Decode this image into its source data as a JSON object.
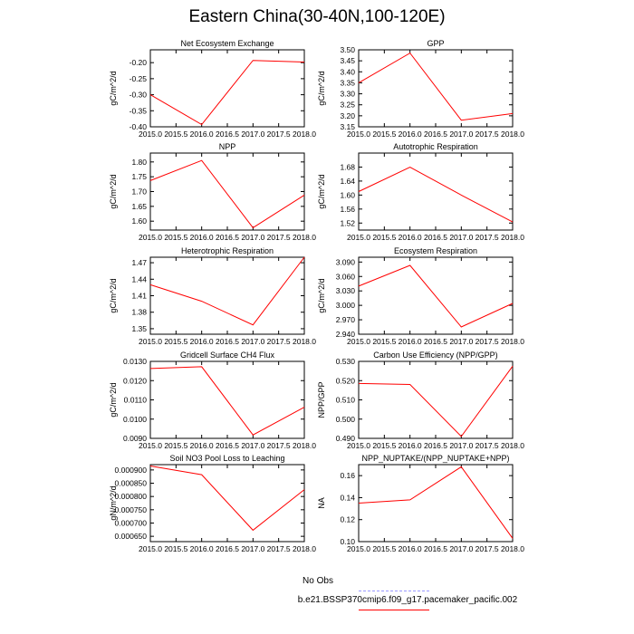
{
  "title": "Eastern China(30-40N,100-120E)",
  "colors": {
    "series": "#ff0000",
    "obs": "#9999ff",
    "axis": "#000000"
  },
  "chart_data": [
    {
      "type": "line",
      "title": "Net Ecosystem Exchange",
      "ylabel": "gC/m^2/d",
      "x": [
        2015.0,
        2016.0,
        2017.0,
        2018.0
      ],
      "values": [
        -0.3,
        -0.393,
        -0.193,
        -0.198
      ],
      "xlim": [
        2015,
        2018
      ],
      "ylim": [
        -0.4,
        -0.16
      ],
      "yticks": [
        -0.4,
        -0.35,
        -0.3,
        -0.25,
        -0.2
      ],
      "ytick_labels": [
        "-0.40",
        "-0.35",
        "-0.30",
        "-0.25",
        "-0.20"
      ],
      "xtick_labels": [
        "2015.0",
        "2015.5",
        "2016.0",
        "2016.5",
        "2017.0",
        "2017.5",
        "2018.0"
      ]
    },
    {
      "type": "line",
      "title": "GPP",
      "ylabel": "gC/m^2/d",
      "x": [
        2015.0,
        2016.0,
        2017.0,
        2018.0
      ],
      "values": [
        3.35,
        3.485,
        3.18,
        3.21
      ],
      "xlim": [
        2015,
        2018
      ],
      "ylim": [
        3.15,
        3.5
      ],
      "yticks": [
        3.15,
        3.2,
        3.25,
        3.3,
        3.35,
        3.4,
        3.45,
        3.5
      ],
      "ytick_labels": [
        "3.15",
        "3.20",
        "3.25",
        "3.30",
        "3.35",
        "3.40",
        "3.45",
        "3.50"
      ],
      "xtick_labels": [
        "2015.0",
        "2015.5",
        "2016.0",
        "2016.5",
        "2017.0",
        "2017.5",
        "2018.0"
      ]
    },
    {
      "type": "line",
      "title": "NPP",
      "ylabel": "gC/m^2/d",
      "x": [
        2015.0,
        2016.0,
        2017.0,
        2018.0
      ],
      "values": [
        1.737,
        1.805,
        1.578,
        1.688
      ],
      "xlim": [
        2015,
        2018
      ],
      "ylim": [
        1.57,
        1.83
      ],
      "yticks": [
        1.6,
        1.65,
        1.7,
        1.75,
        1.8
      ],
      "ytick_labels": [
        "1.60",
        "1.65",
        "1.70",
        "1.75",
        "1.80"
      ],
      "xtick_labels": [
        "2015.0",
        "2015.5",
        "2016.0",
        "2016.5",
        "2017.0",
        "2017.5",
        "2018.0"
      ]
    },
    {
      "type": "line",
      "title": "Autotrophic Respiration",
      "ylabel": "gC/m^2/d",
      "x": [
        2015.0,
        2016.0,
        2017.0,
        2018.0
      ],
      "values": [
        1.61,
        1.68,
        1.6,
        1.523
      ],
      "xlim": [
        2015,
        2018
      ],
      "ylim": [
        1.5,
        1.72
      ],
      "yticks": [
        1.52,
        1.56,
        1.6,
        1.64,
        1.68
      ],
      "ytick_labels": [
        "1.52",
        "1.56",
        "1.60",
        "1.64",
        "1.68"
      ],
      "xtick_labels": [
        "2015.0",
        "2015.5",
        "2016.0",
        "2016.5",
        "2017.0",
        "2017.5",
        "2018.0"
      ]
    },
    {
      "type": "line",
      "title": "Heterotrophic Respiration",
      "ylabel": "gC/m^2/d",
      "x": [
        2015.0,
        2016.0,
        2017.0,
        2018.0
      ],
      "values": [
        1.43,
        1.4,
        1.357,
        1.48
      ],
      "xlim": [
        2015,
        2018
      ],
      "ylim": [
        1.34,
        1.48
      ],
      "yticks": [
        1.35,
        1.38,
        1.41,
        1.44,
        1.47
      ],
      "ytick_labels": [
        "1.35",
        "1.38",
        "1.41",
        "1.44",
        "1.47"
      ],
      "xtick_labels": [
        "2015.0",
        "2015.5",
        "2016.0",
        "2016.5",
        "2017.0",
        "2017.5",
        "2018.0"
      ]
    },
    {
      "type": "line",
      "title": "Ecosystem Respiration",
      "ylabel": "gC/m^2/d",
      "x": [
        2015.0,
        2016.0,
        2017.0,
        2018.0
      ],
      "values": [
        3.04,
        3.083,
        2.955,
        3.004
      ],
      "xlim": [
        2015,
        2018
      ],
      "ylim": [
        2.94,
        3.1
      ],
      "yticks": [
        2.94,
        2.97,
        3.0,
        3.03,
        3.06,
        3.09
      ],
      "ytick_labels": [
        "2.940",
        "2.970",
        "3.000",
        "3.030",
        "3.060",
        "3.090"
      ],
      "xtick_labels": [
        "2015.0",
        "2015.5",
        "2016.0",
        "2016.5",
        "2017.0",
        "2017.5",
        "2018.0"
      ]
    },
    {
      "type": "line",
      "title": "Gridcell Surface CH4 Flux",
      "ylabel": "gC/m^2/d",
      "x": [
        2015.0,
        2016.0,
        2017.0,
        2018.0
      ],
      "values": [
        0.01263,
        0.01272,
        0.00918,
        0.01062
      ],
      "xlim": [
        2015,
        2018
      ],
      "ylim": [
        0.009,
        0.013
      ],
      "yticks": [
        0.009,
        0.01,
        0.011,
        0.012,
        0.013
      ],
      "ytick_labels": [
        "0.0090",
        "0.0100",
        "0.0110",
        "0.0120",
        "0.0130"
      ],
      "xtick_labels": [
        "2015.0",
        "2015.5",
        "2016.0",
        "2016.5",
        "2017.0",
        "2017.5",
        "2018.0"
      ]
    },
    {
      "type": "line",
      "title": "Carbon Use Efficiency (NPP/GPP)",
      "ylabel": "NPP/GPP",
      "x": [
        2015.0,
        2016.0,
        2017.0,
        2018.0
      ],
      "values": [
        0.5185,
        0.518,
        0.491,
        0.5275
      ],
      "xlim": [
        2015,
        2018
      ],
      "ylim": [
        0.49,
        0.53
      ],
      "yticks": [
        0.49,
        0.5,
        0.51,
        0.52,
        0.53
      ],
      "ytick_labels": [
        "0.490",
        "0.500",
        "0.510",
        "0.520",
        "0.530"
      ],
      "xtick_labels": [
        "2015.0",
        "2015.5",
        "2016.0",
        "2016.5",
        "2017.0",
        "2017.5",
        "2018.0"
      ]
    },
    {
      "type": "line",
      "title": "Soil NO3 Pool Loss to Leaching",
      "ylabel": "gN/m^2/d",
      "x": [
        2015.0,
        2016.0,
        2017.0,
        2018.0
      ],
      "values": [
        0.000915,
        0.000882,
        0.000673,
        0.000826
      ],
      "xlim": [
        2015,
        2018
      ],
      "ylim": [
        0.00063,
        0.00092
      ],
      "yticks": [
        0.00065,
        0.0007,
        0.00075,
        0.0008,
        0.00085,
        0.0009
      ],
      "ytick_labels": [
        "0.000650",
        "0.000700",
        "0.000750",
        "0.000800",
        "0.000850",
        "0.000900"
      ],
      "xtick_labels": [
        "2015.0",
        "2015.5",
        "2016.0",
        "2016.5",
        "2017.0",
        "2017.5",
        "2018.0"
      ]
    },
    {
      "type": "line",
      "title": "NPP_NUPTAKE/(NPP_NUPTAKE+NPP)",
      "ylabel": "NA",
      "x": [
        2015.0,
        2016.0,
        2017.0,
        2018.0
      ],
      "values": [
        0.135,
        0.138,
        0.168,
        0.103
      ],
      "xlim": [
        2015,
        2018
      ],
      "ylim": [
        0.1,
        0.17
      ],
      "yticks": [
        0.1,
        0.12,
        0.14,
        0.16
      ],
      "ytick_labels": [
        "0.10",
        "0.12",
        "0.14",
        "0.16"
      ],
      "xtick_labels": [
        "2015.0",
        "2015.5",
        "2016.0",
        "2016.5",
        "2017.0",
        "2017.5",
        "2018.0"
      ]
    }
  ],
  "legend": {
    "obs_label": "No Obs",
    "model_label": "b.e21.BSSP370cmip6.f09_g17.pacemaker_pacific.002"
  }
}
